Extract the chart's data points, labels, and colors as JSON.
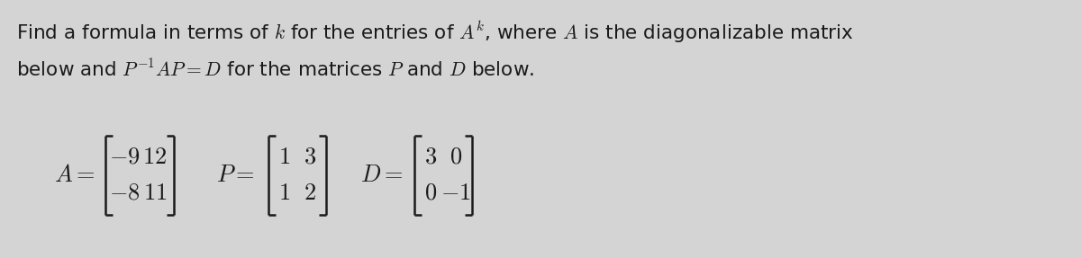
{
  "bg_color": "#d4d4d4",
  "text_line1": "Find a formula in terms of $k$ for the entries of $A^k$, where $A$ is the diagonalizable matrix",
  "text_line2": "below and $P^{-1}AP=D$ for the matrices $P$ and $D$ below.",
  "matrix_A_rows": [
    [
      "-9",
      "12"
    ],
    [
      "-8",
      "11"
    ]
  ],
  "matrix_P_rows": [
    [
      "1",
      "3"
    ],
    [
      "1",
      "2"
    ]
  ],
  "matrix_D_rows": [
    [
      "3",
      "0"
    ],
    [
      "0",
      "-1"
    ]
  ],
  "font_size_text": 15.5,
  "font_size_matrix": 19,
  "text_color": "#1a1a1a",
  "figwidth": 12.0,
  "figheight": 2.87,
  "dpi": 100
}
